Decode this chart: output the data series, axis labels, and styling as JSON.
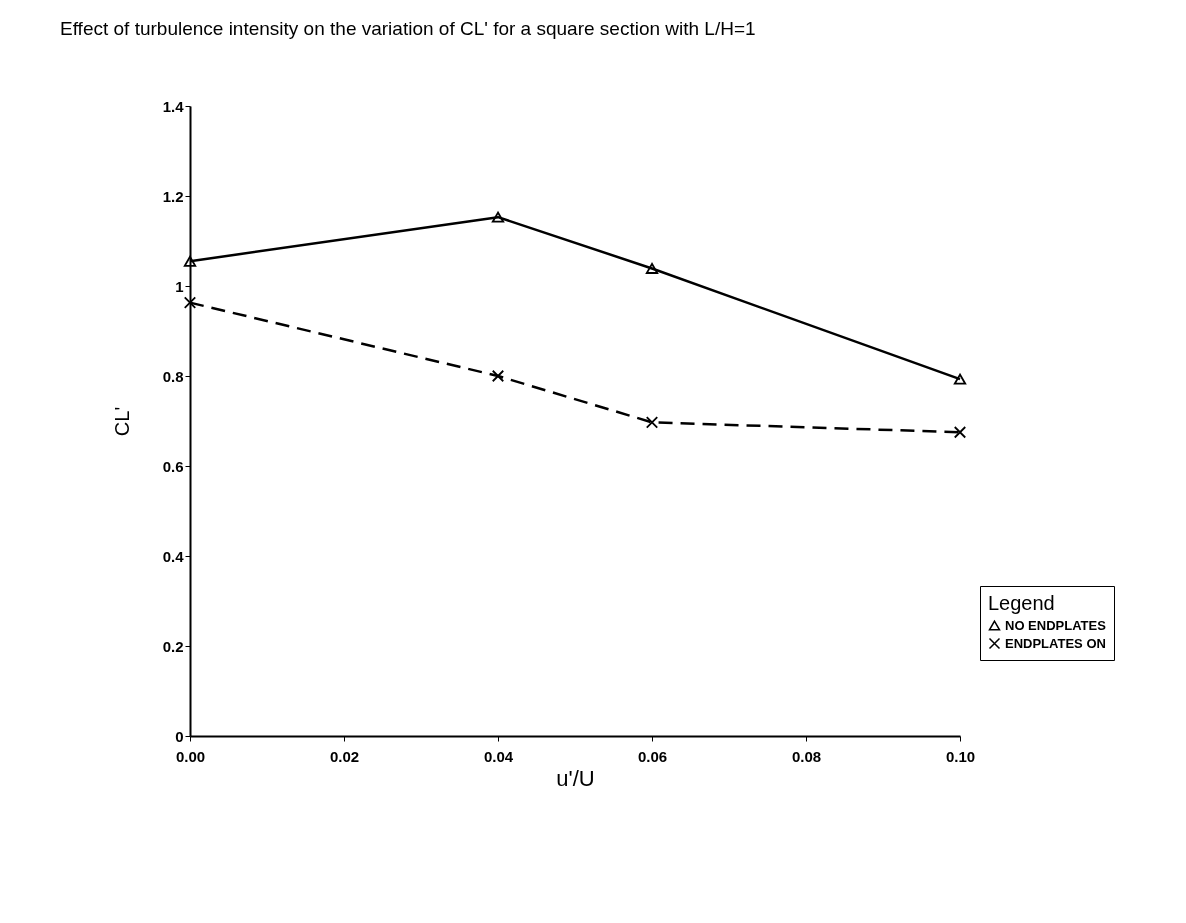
{
  "chart_data": {
    "type": "line",
    "title": "Effect of turbulence intensity on the variation of CL' for a square section with L/H=1",
    "xlabel": "u'/U",
    "ylabel": "CL'",
    "legend_title": "Legend",
    "legend": "bottom right",
    "x": [
      0,
      0.04,
      0.06,
      0.1
    ],
    "xlim": [
      0,
      0.1
    ],
    "xticks": [
      {
        "value": 0,
        "label": "0.00"
      },
      0.02,
      0.04,
      0.06,
      0.08,
      {
        "value": 0.1,
        "label": "0.10"
      }
    ],
    "ylim": [
      0,
      1.4
    ],
    "yticks": [
      0,
      0.2,
      0.4,
      0.6,
      0.8,
      1,
      1.2,
      1.4
    ],
    "grid": false,
    "series": [
      {
        "name": "NO ENDPLATES",
        "color": "#000000",
        "marker": "triangle",
        "line_style": "solid",
        "values": [
          1.055,
          1.153,
          1.039,
          0.793
        ]
      },
      {
        "name": "ENDPLATES ON",
        "color": "#000000",
        "marker": "cross",
        "line_style": "dashed",
        "values": [
          0.963,
          0.8,
          0.697,
          0.675
        ]
      }
    ]
  }
}
